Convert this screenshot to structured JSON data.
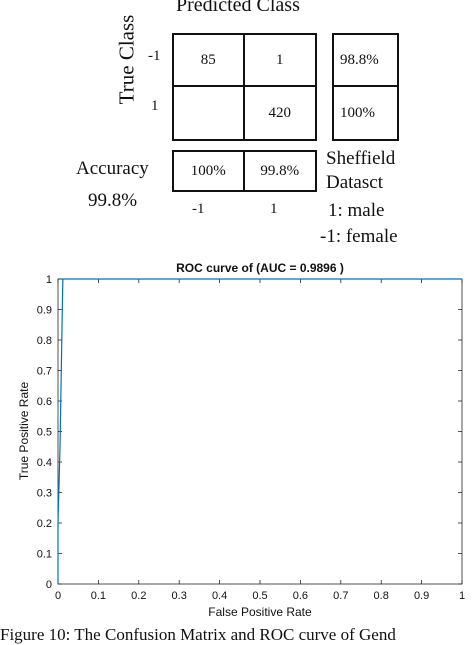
{
  "confusion_matrix": {
    "title": "Predicted Class",
    "true_class_label": "True Class",
    "row_labels": [
      "-1",
      "1"
    ],
    "col_labels": [
      "-1",
      "1"
    ],
    "cells": [
      [
        "85",
        "1"
      ],
      [
        "",
        "420"
      ]
    ],
    "row_accuracy": [
      "98.8%",
      "100%"
    ],
    "col_accuracy": [
      "100%",
      "99.8%"
    ],
    "accuracy_label": "Accuracy",
    "accuracy_value": "99.8%",
    "dataset_lines": [
      "Sheffield",
      "Datasct",
      "1: male",
      "-1: female"
    ]
  },
  "chart_data": {
    "type": "line",
    "title": "ROC curve of (AUC = 0.9896 )",
    "xlabel": "False Positive Rate",
    "ylabel": "True Positive Rate",
    "xlim": [
      0,
      1
    ],
    "ylim": [
      0,
      1
    ],
    "xticks": [
      "0",
      "0.1",
      "0.2",
      "0.3",
      "0.4",
      "0.5",
      "0.6",
      "0.7",
      "0.8",
      "0.9",
      "1"
    ],
    "yticks": [
      "0",
      "0.1",
      "0.2",
      "0.3",
      "0.4",
      "0.5",
      "0.6",
      "0.7",
      "0.8",
      "0.9",
      "1"
    ],
    "grid": false,
    "series": [
      {
        "color": "#0072BD",
        "x": [
          0,
          0.0,
          0.005,
          0.01,
          0.012,
          1.0
        ],
        "y": [
          0,
          0.2,
          0.45,
          0.85,
          1.0,
          1.0
        ]
      }
    ]
  },
  "caption": "Figure 10: The Confusion Matrix and ROC curve of Gend"
}
